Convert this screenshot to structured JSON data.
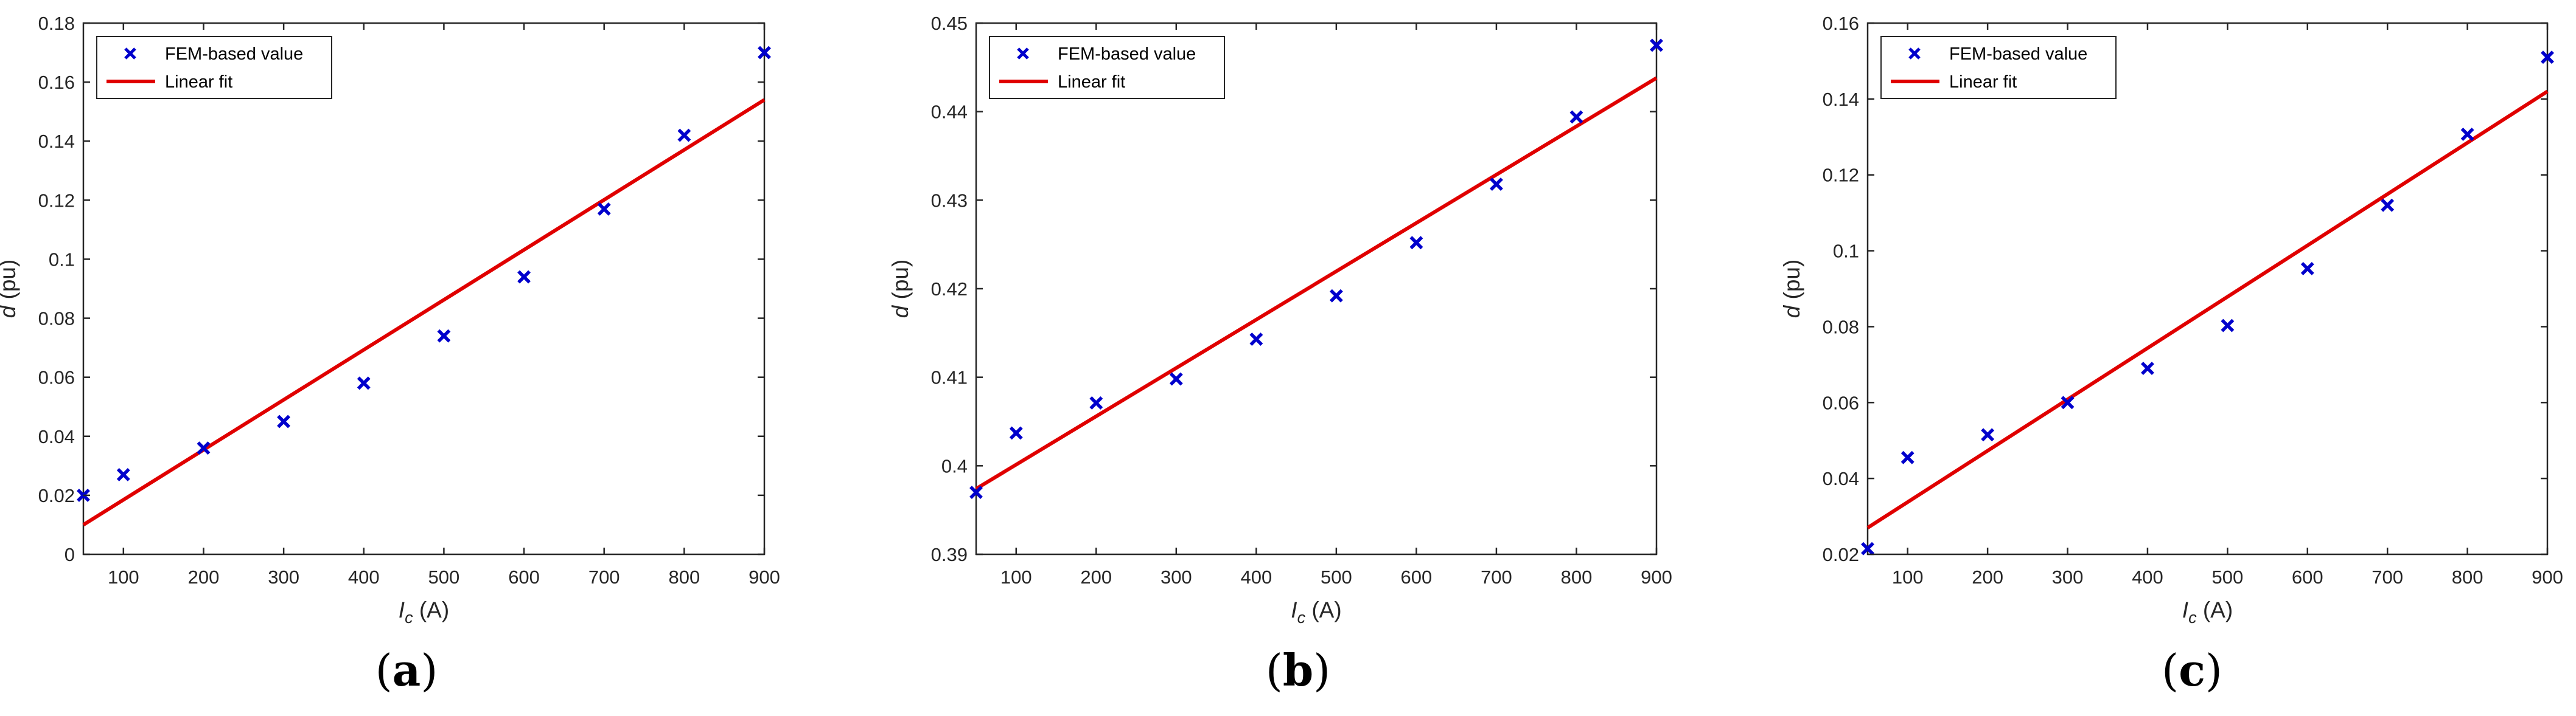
{
  "colors": {
    "scatter": "#0000cc",
    "fit": "#e00000",
    "axis": "#262626"
  },
  "chart_data": [
    {
      "type": "scatter",
      "panel_label": {
        "open": "(",
        "letter": "a",
        "close": ")"
      },
      "xlabel": {
        "italic": "I",
        "sub": "c",
        "rest": " (A)"
      },
      "ylabel": {
        "italic": "d",
        "rest": " (pu)"
      },
      "xlim": [
        50,
        900
      ],
      "ylim": [
        0,
        0.18
      ],
      "xticks": [
        100,
        200,
        300,
        400,
        500,
        600,
        700,
        800,
        900
      ],
      "xtick_labels": [
        "100",
        "200",
        "300",
        "400",
        "500",
        "600",
        "700",
        "800",
        "900"
      ],
      "yticks": [
        0,
        0.02,
        0.04,
        0.06,
        0.08,
        0.1,
        0.12,
        0.14,
        0.16,
        0.18
      ],
      "ytick_labels": [
        "0",
        "0.02",
        "0.04",
        "0.06",
        "0.08",
        "0.1",
        "0.12",
        "0.14",
        "0.16",
        "0.18"
      ],
      "legend": [
        "FEM-based value",
        "Linear fit"
      ],
      "legend_position": "top-left",
      "grid": false,
      "series": [
        {
          "name": "FEM-based value",
          "kind": "scatter",
          "x": [
            50,
            100,
            200,
            300,
            400,
            500,
            600,
            700,
            800,
            900
          ],
          "y": [
            0.02,
            0.027,
            0.036,
            0.045,
            0.058,
            0.074,
            0.094,
            0.117,
            0.142,
            0.17
          ]
        },
        {
          "name": "Linear fit",
          "kind": "line",
          "x": [
            50,
            900
          ],
          "y": [
            0.01,
            0.154
          ]
        }
      ]
    },
    {
      "type": "scatter",
      "panel_label": {
        "open": "(",
        "letter": "b",
        "close": ")"
      },
      "xlabel": {
        "italic": "I",
        "sub": "c",
        "rest": " (A)"
      },
      "ylabel": {
        "italic": "d",
        "rest": " (pu)"
      },
      "xlim": [
        50,
        900
      ],
      "ylim": [
        0.39,
        0.45
      ],
      "xticks": [
        100,
        200,
        300,
        400,
        500,
        600,
        700,
        800,
        900
      ],
      "xtick_labels": [
        "100",
        "200",
        "300",
        "400",
        "500",
        "600",
        "700",
        "800",
        "900"
      ],
      "yticks": [
        0.39,
        0.4,
        0.41,
        0.42,
        0.43,
        0.44,
        0.45
      ],
      "ytick_labels": [
        "0.39",
        "0.4",
        "0.41",
        "0.42",
        "0.43",
        "0.44",
        "0.45"
      ],
      "legend": [
        "FEM-based value",
        "Linear fit"
      ],
      "legend_position": "top-left",
      "grid": false,
      "series": [
        {
          "name": "FEM-based value",
          "kind": "scatter",
          "x": [
            50,
            100,
            200,
            300,
            400,
            500,
            600,
            700,
            800,
            900
          ],
          "y": [
            0.397,
            0.4037,
            0.4071,
            0.4098,
            0.4143,
            0.4192,
            0.4252,
            0.4318,
            0.4394,
            0.4475
          ]
        },
        {
          "name": "Linear fit",
          "kind": "line",
          "x": [
            50,
            900
          ],
          "y": [
            0.3974,
            0.4438
          ]
        }
      ]
    },
    {
      "type": "scatter",
      "panel_label": {
        "open": "(",
        "letter": "c",
        "close": ")"
      },
      "xlabel": {
        "italic": "I",
        "sub": "c",
        "rest": " (A)"
      },
      "ylabel": {
        "italic": "d",
        "rest": " (pu)"
      },
      "xlim": [
        50,
        900
      ],
      "ylim": [
        0.02,
        0.16
      ],
      "xticks": [
        100,
        200,
        300,
        400,
        500,
        600,
        700,
        800,
        900
      ],
      "xtick_labels": [
        "100",
        "200",
        "300",
        "400",
        "500",
        "600",
        "700",
        "800",
        "900"
      ],
      "yticks": [
        0.02,
        0.04,
        0.06,
        0.08,
        0.1,
        0.12,
        0.14,
        0.16
      ],
      "ytick_labels": [
        "0.02",
        "0.04",
        "0.06",
        "0.08",
        "0.1",
        "0.12",
        "0.14",
        "0.16"
      ],
      "legend": [
        "FEM-based value",
        "Linear fit"
      ],
      "legend_position": "top-left",
      "grid": false,
      "series": [
        {
          "name": "FEM-based value",
          "kind": "scatter",
          "x": [
            50,
            100,
            200,
            300,
            400,
            500,
            600,
            700,
            800,
            900
          ],
          "y": [
            0.0215,
            0.0455,
            0.0515,
            0.06,
            0.069,
            0.0803,
            0.0953,
            0.112,
            0.1307,
            0.151
          ]
        },
        {
          "name": "Linear fit",
          "kind": "line",
          "x": [
            50,
            900
          ],
          "y": [
            0.027,
            0.142
          ]
        }
      ]
    }
  ]
}
